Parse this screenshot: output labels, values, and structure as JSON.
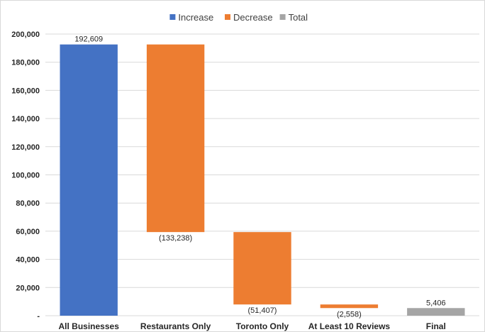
{
  "chart_data": {
    "type": "bar",
    "subtype": "waterfall",
    "categories": [
      "All Businesses",
      "Restaurants Only",
      "Toronto Only",
      "At Least 10 Reviews",
      "Final"
    ],
    "values": [
      192609,
      -133238,
      -51407,
      -2558,
      5406
    ],
    "kinds": [
      "increase",
      "decrease",
      "decrease",
      "decrease",
      "total"
    ],
    "data_labels": [
      "192,609",
      "(133,238)",
      "(51,407)",
      "(2,558)",
      "5,406"
    ],
    "ylim": [
      0,
      200000
    ],
    "yticks": [
      0,
      20000,
      40000,
      60000,
      80000,
      100000,
      120000,
      140000,
      160000,
      180000,
      200000
    ],
    "ytick_labels": [
      "-",
      "20,000",
      "40,000",
      "60,000",
      "80,000",
      "100,000",
      "120,000",
      "140,000",
      "160,000",
      "180,000",
      "200,000"
    ],
    "legend": {
      "position": "top-center",
      "entries": [
        {
          "name": "Increase",
          "color": "#4472c4"
        },
        {
          "name": "Decrease",
          "color": "#ed7d31"
        },
        {
          "name": "Total",
          "color": "#a5a5a5"
        }
      ]
    },
    "colors": {
      "increase": "#4472c4",
      "decrease": "#ed7d31",
      "total": "#a5a5a5"
    },
    "grid": true
  }
}
